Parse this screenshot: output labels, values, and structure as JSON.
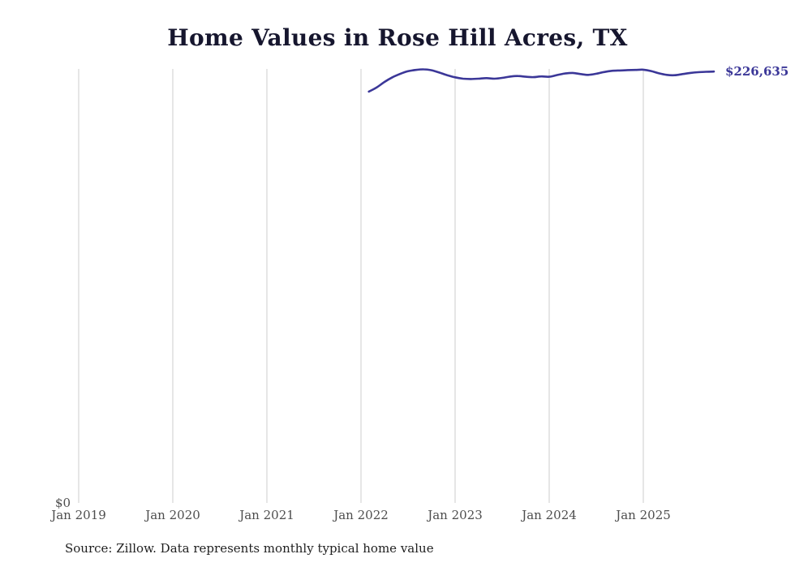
{
  "chart": {
    "title": "Home Values in Rose Hill Acres, TX",
    "source_note": "Source: Zillow. Data represents monthly typical home value",
    "end_label": "$226,635",
    "y_zero_label": "$0",
    "colors": {
      "line": "#3b3798",
      "grid": "#cccccc",
      "title": "#16162e",
      "tick": "#4d4d4d",
      "end_label": "#3b3798",
      "source": "#1f1f1f"
    }
  },
  "chart_data": {
    "type": "line",
    "title": "Home Values in Rose Hill Acres, TX",
    "xlabel": "",
    "ylabel": "",
    "ylim": [
      0,
      228000
    ],
    "grid": "vertical",
    "legend": "none",
    "x_ticks": [
      "Jan 2019",
      "Jan 2020",
      "Jan 2021",
      "Jan 2022",
      "Jan 2023",
      "Jan 2024",
      "Jan 2025"
    ],
    "series": [
      {
        "name": "Monthly typical home value",
        "end_value": 226635,
        "points": [
          {
            "date": "2022-02",
            "value": 216100
          },
          {
            "date": "2022-03",
            "value": 218300
          },
          {
            "date": "2022-04",
            "value": 221200
          },
          {
            "date": "2022-05",
            "value": 223600
          },
          {
            "date": "2022-06",
            "value": 225400
          },
          {
            "date": "2022-07",
            "value": 226800
          },
          {
            "date": "2022-08",
            "value": 227500
          },
          {
            "date": "2022-09",
            "value": 227800
          },
          {
            "date": "2022-10",
            "value": 227300
          },
          {
            "date": "2022-11",
            "value": 226100
          },
          {
            "date": "2022-12",
            "value": 224700
          },
          {
            "date": "2023-01",
            "value": 223600
          },
          {
            "date": "2023-02",
            "value": 222900
          },
          {
            "date": "2023-03",
            "value": 222700
          },
          {
            "date": "2023-04",
            "value": 222900
          },
          {
            "date": "2023-05",
            "value": 223200
          },
          {
            "date": "2023-06",
            "value": 222900
          },
          {
            "date": "2023-07",
            "value": 223300
          },
          {
            "date": "2023-08",
            "value": 224000
          },
          {
            "date": "2023-09",
            "value": 224300
          },
          {
            "date": "2023-10",
            "value": 223900
          },
          {
            "date": "2023-11",
            "value": 223700
          },
          {
            "date": "2023-12",
            "value": 224100
          },
          {
            "date": "2024-01",
            "value": 223900
          },
          {
            "date": "2024-02",
            "value": 224800
          },
          {
            "date": "2024-03",
            "value": 225600
          },
          {
            "date": "2024-04",
            "value": 225900
          },
          {
            "date": "2024-05",
            "value": 225300
          },
          {
            "date": "2024-06",
            "value": 224900
          },
          {
            "date": "2024-07",
            "value": 225500
          },
          {
            "date": "2024-08",
            "value": 226400
          },
          {
            "date": "2024-09",
            "value": 227000
          },
          {
            "date": "2024-10",
            "value": 227200
          },
          {
            "date": "2024-11",
            "value": 227400
          },
          {
            "date": "2024-12",
            "value": 227500
          },
          {
            "date": "2025-01",
            "value": 227600
          },
          {
            "date": "2025-02",
            "value": 226900
          },
          {
            "date": "2025-03",
            "value": 225700
          },
          {
            "date": "2025-04",
            "value": 224900
          },
          {
            "date": "2025-05",
            "value": 224700
          },
          {
            "date": "2025-06",
            "value": 225300
          },
          {
            "date": "2025-07",
            "value": 225900
          },
          {
            "date": "2025-08",
            "value": 226300
          },
          {
            "date": "2025-09",
            "value": 226500
          },
          {
            "date": "2025-10",
            "value": 226635
          }
        ]
      }
    ]
  }
}
